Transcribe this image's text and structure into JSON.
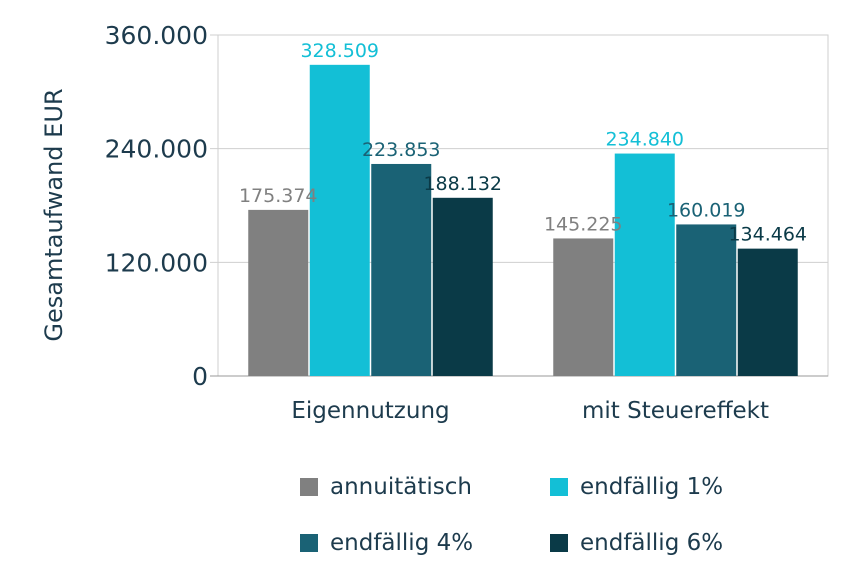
{
  "chart_data": {
    "type": "bar",
    "categories": [
      "Eigennutzung",
      "mit Steuereffekt"
    ],
    "series": [
      {
        "name": "annuitätisch",
        "color": "#808080",
        "values": [
          175374,
          145225
        ],
        "labels": [
          "175.374",
          "145.225"
        ]
      },
      {
        "name": "endfällig 1%",
        "color": "#13bfd6",
        "values": [
          328509,
          234840
        ],
        "labels": [
          "328.509",
          "234.840"
        ]
      },
      {
        "name": "endfällig 4%",
        "color": "#1a6275",
        "values": [
          223853,
          160019
        ],
        "labels": [
          "223.853",
          "160.019"
        ]
      },
      {
        "name": "endfällig 6%",
        "color": "#0a3a47",
        "values": [
          188132,
          134464
        ],
        "labels": [
          "188.132",
          "134.464"
        ]
      }
    ],
    "data_label_colors": [
      "#808080",
      "#13bfd6",
      "#1a6275",
      "#0a3a47"
    ],
    "ylabel": "Gesamtaufwand EUR",
    "xlabel": "",
    "ylim": [
      0,
      360000
    ],
    "yticks": [
      0,
      120000,
      240000,
      360000
    ],
    "ytick_labels": [
      "0",
      "120.000",
      "240.000",
      "360.000"
    ],
    "grid": true,
    "legend_position": "bottom"
  }
}
